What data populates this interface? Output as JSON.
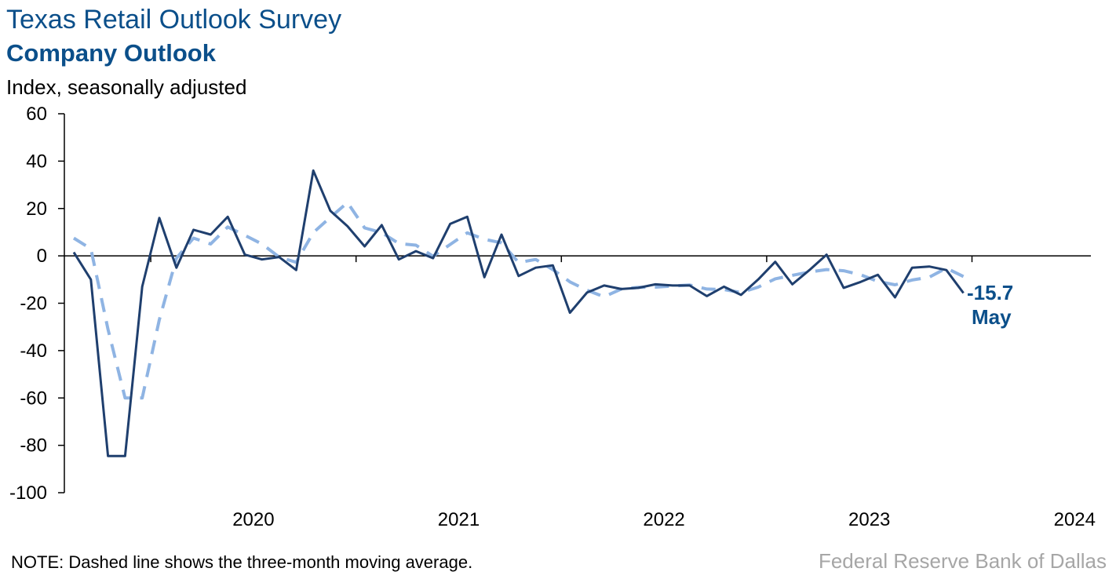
{
  "chart_data": {
    "type": "line",
    "title": "Texas Retail Outlook Survey",
    "subtitle": "Company Outlook",
    "ylabel": "Index, seasonally adjusted",
    "ylim": [
      -100,
      60
    ],
    "yticks": [
      60,
      40,
      20,
      0,
      -20,
      -40,
      -60,
      -80,
      -100
    ],
    "x_tick_labels": [
      "2020",
      "2021",
      "2022",
      "2023",
      "2024"
    ],
    "x_start": "2019-08",
    "grid": false,
    "series": [
      {
        "style": "solid",
        "color": "#1f3f6e",
        "values": [
          1.5,
          -10,
          -84.5,
          -84.5,
          -13,
          16,
          -5,
          11,
          9,
          16.5,
          0.5,
          -1.5,
          -0.5,
          -6,
          36,
          19,
          12.5,
          4,
          13,
          -1.5,
          2,
          -1,
          13.5,
          16.5,
          -9,
          9,
          -8.5,
          -5,
          -4,
          -24,
          -15.5,
          -12.5,
          -14,
          -13.5,
          -12,
          -12.5,
          -12.5,
          -17,
          -13,
          -16.5,
          -10,
          -2.5,
          -12,
          -6,
          0.5,
          -13.5,
          -11,
          -8,
          -17.5,
          -5,
          -4.5,
          -6,
          -15.7
        ]
      },
      {
        "style": "dashed",
        "color": "#8fb4e3",
        "values": [
          7.5,
          3,
          -31,
          -60,
          -60,
          -27,
          -1,
          7.5,
          5,
          12.2,
          8.7,
          5,
          -0.5,
          -2.7,
          9.8,
          16.3,
          22.5,
          11.8,
          9.8,
          5.2,
          4.5,
          -0.2,
          4.8,
          9.7,
          7,
          5.5,
          -2.8,
          -1.5,
          -5.8,
          -11,
          -14.5,
          -17.3,
          -14,
          -13.3,
          -13.2,
          -12.7,
          -12.3,
          -14,
          -14.2,
          -15.5,
          -13.2,
          -9.7,
          -8.2,
          -6.8,
          -5.8,
          -6.3,
          -8,
          -10.8,
          -12.2,
          -10.2,
          -9,
          -5.2,
          -8.7
        ]
      }
    ],
    "annotation": {
      "value": "-15.7",
      "label": "May"
    },
    "note": "NOTE: Dashed line shows the three-month moving average.",
    "source": "Federal Reserve Bank of Dallas"
  }
}
